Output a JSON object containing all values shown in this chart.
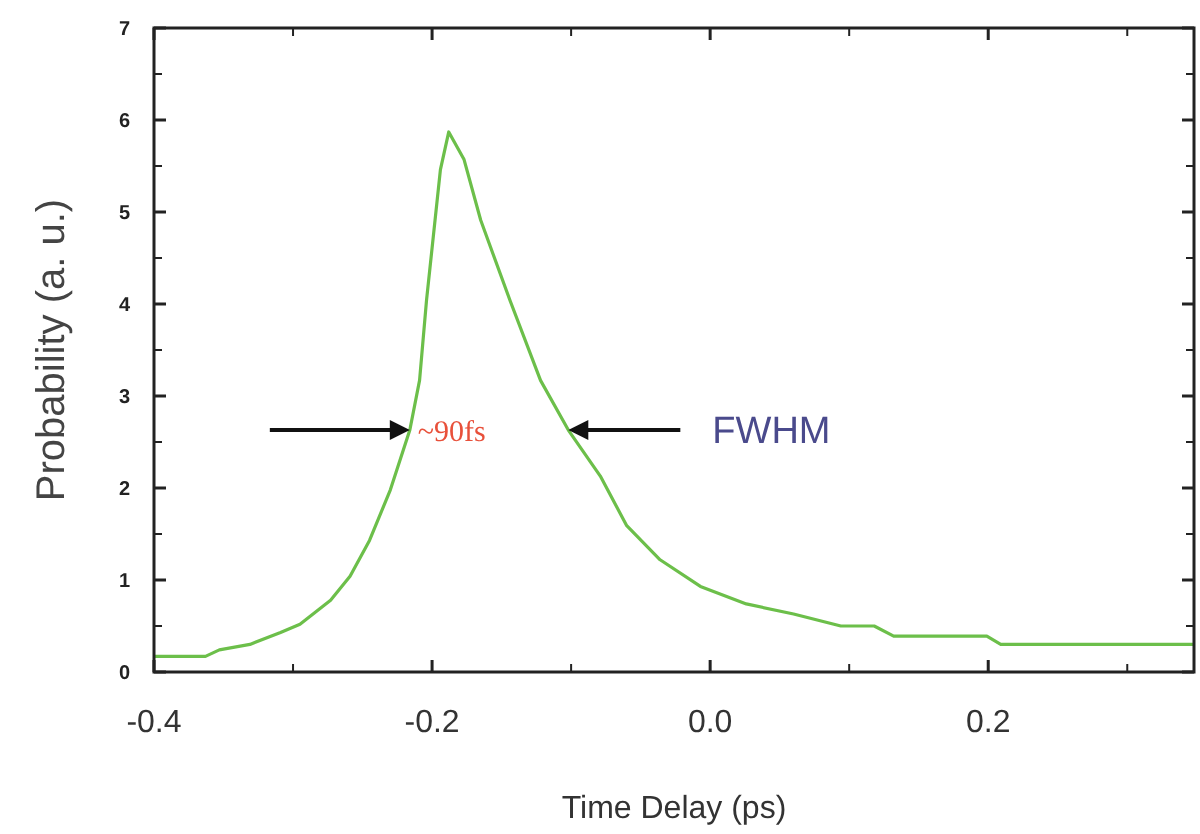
{
  "chart_data": {
    "type": "line",
    "xlabel": "Time Delay (ps)",
    "ylabel": "Probability (a. u.)",
    "x": [
      -0.4,
      -0.363,
      -0.353,
      -0.331,
      -0.309,
      -0.295,
      -0.273,
      -0.259,
      -0.245,
      -0.23,
      -0.216,
      -0.209,
      -0.204,
      -0.194,
      -0.188,
      -0.177,
      -0.165,
      -0.144,
      -0.122,
      -0.102,
      -0.079,
      -0.06,
      -0.036,
      -0.007,
      0.026,
      0.06,
      0.094,
      0.118,
      0.132,
      0.199,
      0.209,
      0.348
    ],
    "series": [
      {
        "color": "#6cbf4a",
        "values": [
          0.17,
          0.17,
          0.24,
          0.3,
          0.43,
          0.52,
          0.78,
          1.04,
          1.43,
          1.98,
          2.63,
          3.17,
          4.04,
          5.46,
          5.87,
          5.57,
          4.91,
          4.04,
          3.17,
          2.63,
          2.13,
          1.59,
          1.22,
          0.93,
          0.74,
          0.63,
          0.5,
          0.5,
          0.39,
          0.39,
          0.3,
          0.3
        ]
      }
    ],
    "xlim": [
      -0.4,
      0.348
    ],
    "xticks": [
      -0.4,
      -0.2,
      {
        "value": 0,
        "label": "0.0"
      },
      0.2
    ],
    "ylim": [
      0,
      7
    ],
    "yticks": [
      0,
      1,
      2,
      3,
      4,
      5,
      6,
      7
    ],
    "annotations": [
      {
        "text": "~90fs",
        "x": -0.216,
        "y": 2.63
      },
      {
        "text": "FWHM",
        "x": -0.102,
        "y": 2.63
      }
    ],
    "grid": false,
    "marker": "none",
    "line_style": "solid"
  }
}
